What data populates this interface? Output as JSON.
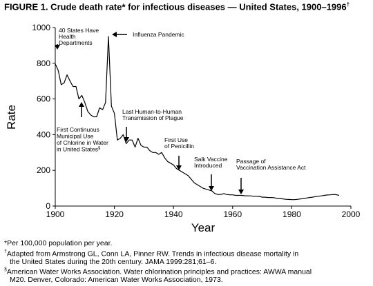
{
  "figure": {
    "title": "FIGURE 1. Crude death rate* for infectious diseases — United States, 1900–1996",
    "title_mark": "†"
  },
  "footnotes": {
    "f1": "*Per 100,000 population per year.",
    "f2_mark": "†",
    "f2_line1": "Adapted from Armstrong GL, Conn LA, Pinner RW. Trends in infectious disease mortality in",
    "f2_line2": "the United States during the 20th century. JAMA 1999:281;61–6.",
    "f3_mark": "§",
    "f3_line1": "American Water Works Association. Water chlorination principles and practices: AWWA manual",
    "f3_line2": "M20. Denver, Colorado: American Water Works Association, 1973."
  },
  "chart_data": {
    "type": "line",
    "xlabel": "Year",
    "ylabel": "Rate",
    "xlim": [
      1900,
      2000
    ],
    "ylim": [
      0,
      1000
    ],
    "xticks": [
      "1900",
      "1920",
      "1940",
      "1960",
      "1980",
      "2000"
    ],
    "yticks": [
      "0",
      "200",
      "400",
      "600",
      "800",
      "1000"
    ],
    "grid": false,
    "series": [
      {
        "x": [
          1900,
          1901,
          1902,
          1903,
          1904,
          1905,
          1906,
          1907,
          1908,
          1909,
          1910,
          1911,
          1912,
          1913,
          1914,
          1915,
          1916,
          1917,
          1918,
          1919,
          1920,
          1921,
          1922,
          1923,
          1924,
          1925,
          1926,
          1927,
          1928,
          1929,
          1930,
          1931,
          1932,
          1933,
          1934,
          1935,
          1936,
          1937,
          1938,
          1939,
          1940,
          1941,
          1942,
          1943,
          1944,
          1945,
          1946,
          1947,
          1948,
          1949,
          1950,
          1951,
          1952,
          1953,
          1954,
          1955,
          1956,
          1957,
          1958,
          1959,
          1960,
          1961,
          1962,
          1963,
          1964,
          1965,
          1966,
          1967,
          1968,
          1969,
          1970,
          1971,
          1972,
          1973,
          1974,
          1975,
          1976,
          1977,
          1978,
          1979,
          1980,
          1981,
          1982,
          1983,
          1984,
          1985,
          1986,
          1987,
          1988,
          1989,
          1990,
          1991,
          1992,
          1993,
          1994,
          1995,
          1996
        ],
        "y": [
          797,
          760,
          680,
          690,
          735,
          700,
          670,
          670,
          600,
          620,
          580,
          530,
          510,
          500,
          500,
          550,
          540,
          580,
          950,
          560,
          520,
          370,
          380,
          400,
          350,
          370,
          370,
          330,
          380,
          340,
          330,
          330,
          310,
          300,
          300,
          290,
          300,
          270,
          250,
          240,
          230,
          210,
          200,
          190,
          180,
          170,
          150,
          130,
          120,
          110,
          100,
          95,
          90,
          85,
          70,
          65,
          65,
          70,
          65,
          63,
          63,
          60,
          60,
          60,
          58,
          57,
          57,
          55,
          55,
          54,
          50,
          50,
          48,
          48,
          47,
          43,
          42,
          40,
          38,
          37,
          36,
          36,
          38,
          40,
          42,
          45,
          48,
          50,
          53,
          55,
          57,
          60,
          62,
          63,
          65,
          64,
          60
        ]
      }
    ],
    "annotations": [
      {
        "text": [
          "40 States Have",
          "Health",
          "Departments"
        ],
        "x": 1900,
        "y": 860
      },
      {
        "text": [
          "Influenza Pandemic"
        ],
        "x": 1918,
        "y": 950
      },
      {
        "text": [
          "First Continuous",
          "Municipal Use",
          "of Chlorine in Water",
          "in United States"
        ],
        "mark": "§",
        "x": 1908,
        "y": 560
      },
      {
        "text": [
          "Last Human-to-Human",
          "Transmission of Plague"
        ],
        "x": 1924,
        "y": 350
      },
      {
        "text": [
          "First Use",
          "of Penicillin"
        ],
        "x": 1942,
        "y": 210
      },
      {
        "text": [
          "Salk Vaccine",
          "Introduced"
        ],
        "x": 1955,
        "y": 70
      },
      {
        "text": [
          "Passage of",
          "Vaccination Assistance Act"
        ],
        "x": 1962,
        "y": 63
      }
    ]
  }
}
